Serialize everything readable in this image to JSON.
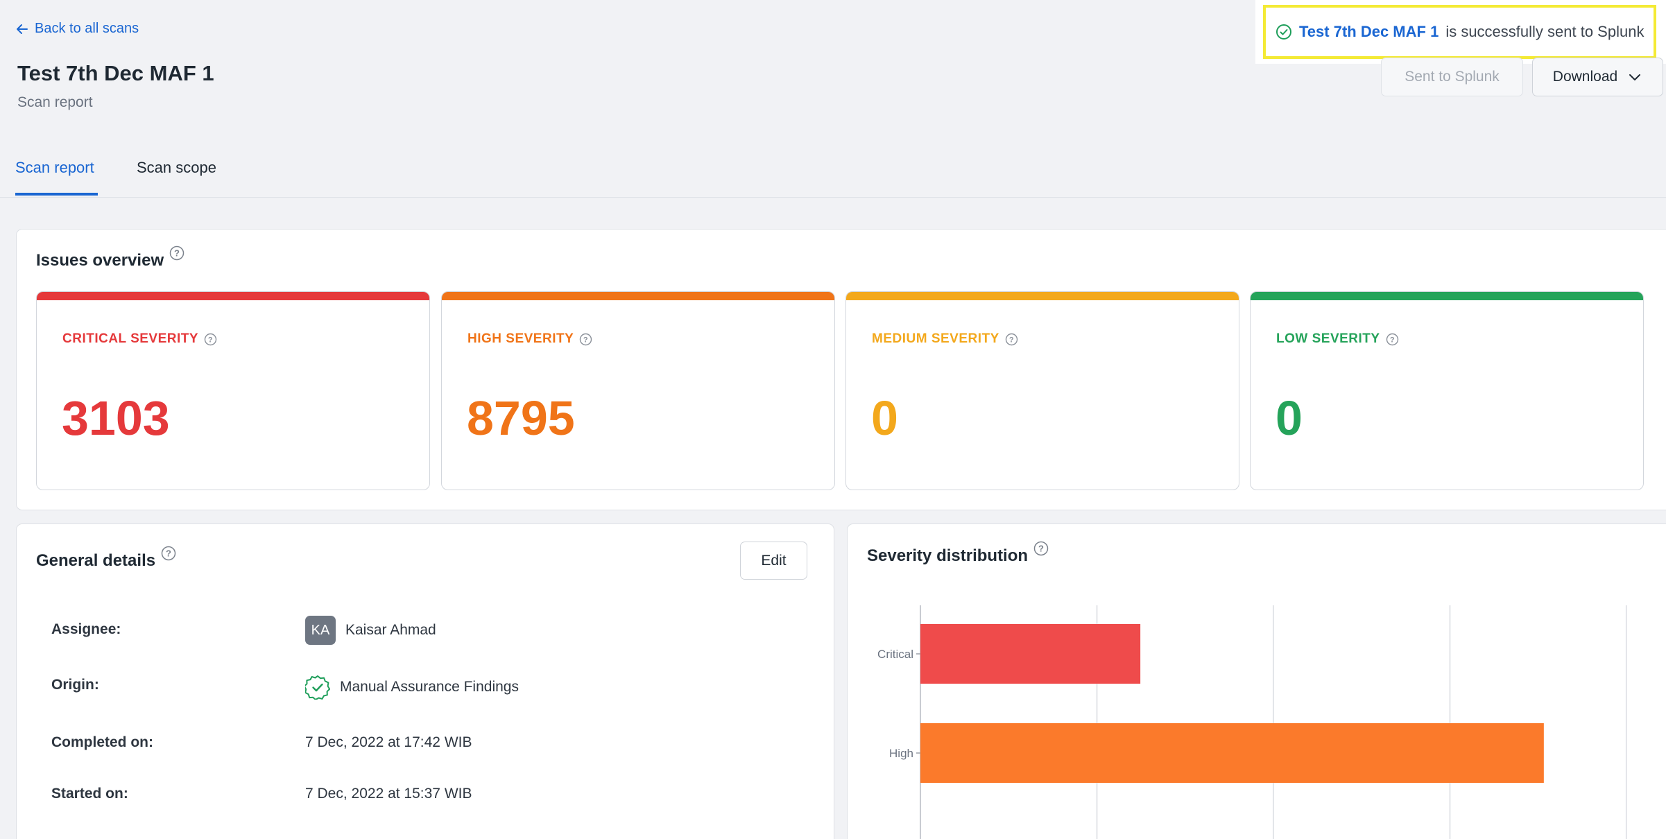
{
  "header": {
    "back_label": "Back to all scans",
    "title": "Test 7th Dec MAF 1",
    "subtitle": "Scan report",
    "sent_label": "Sent to Splunk",
    "download_label": "Download"
  },
  "toast": {
    "scan_name": "Test 7th Dec MAF 1",
    "message": "is successfully sent to Splunk",
    "accent": "#1e9e5a"
  },
  "tabs": [
    {
      "label": "Scan report",
      "active": true
    },
    {
      "label": "Scan scope",
      "active": false
    }
  ],
  "issues": {
    "title": "Issues overview",
    "cards": [
      {
        "label": "CRITICAL SEVERITY",
        "value": "3103",
        "color": "#e5393b"
      },
      {
        "label": "HIGH SEVERITY",
        "value": "8795",
        "color": "#f07418"
      },
      {
        "label": "MEDIUM SEVERITY",
        "value": "0",
        "color": "#f3a81c"
      },
      {
        "label": "LOW SEVERITY",
        "value": "0",
        "color": "#25a35a"
      }
    ]
  },
  "general": {
    "title": "General details",
    "edit_label": "Edit",
    "assignee_label": "Assignee:",
    "assignee_initials": "KA",
    "assignee_name": "Kaisar Ahmad",
    "origin_label": "Origin:",
    "origin_value": "Manual Assurance Findings",
    "completed_label": "Completed on:",
    "completed_value": "7 Dec, 2022 at 17:42 WIB",
    "started_label": "Started on:",
    "started_value": "7 Dec, 2022 at 15:37 WIB"
  },
  "distribution": {
    "title": "Severity distribution"
  },
  "chart_data": {
    "type": "bar",
    "orientation": "horizontal",
    "categories": [
      "Critical",
      "High"
    ],
    "values": [
      3103,
      8795
    ],
    "colors": [
      "#ef4b4b",
      "#fb7a2b"
    ],
    "xlim": [
      0,
      10000
    ],
    "grid": true
  }
}
